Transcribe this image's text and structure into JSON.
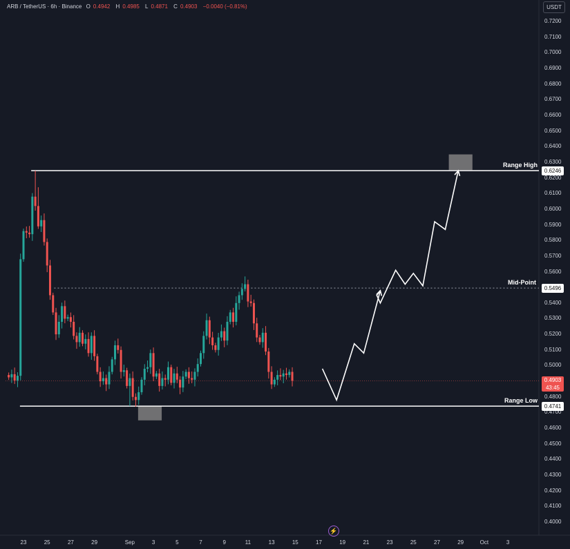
{
  "header": {
    "symbol": "ARB / TetherUS · 6h · Binance",
    "open_label": "O",
    "open": "0.4942",
    "high_label": "H",
    "high": "0.4985",
    "low_label": "L",
    "low": "0.4871",
    "close_label": "C",
    "close": "0.4903",
    "change": "−0.0040 (−0.81%)"
  },
  "currency": "USDT",
  "colors": {
    "background": "#161a25",
    "up": "#26a69a",
    "down": "#ef5350",
    "level_line": "#ffffff",
    "arrow": "#ffffff",
    "box": "#808080"
  },
  "last_price": {
    "value": "0.4903",
    "countdown": "43:45"
  },
  "levels": [
    {
      "name": "Range High",
      "value": "0.6246",
      "price": 0.6246,
      "style": "solid"
    },
    {
      "name": "Mid-Point",
      "value": "0.5496",
      "price": 0.5496,
      "style": "dotted"
    },
    {
      "name": "Range Low",
      "value": "0.4741",
      "price": 0.4741,
      "style": "solid"
    }
  ],
  "chart_data": {
    "type": "candlestick",
    "title": "",
    "xlabel": "",
    "ylabel": "",
    "ylim": [
      0.39,
      0.73
    ],
    "y_ticks": [
      "0.7200",
      "0.7100",
      "0.7000",
      "0.6900",
      "0.6800",
      "0.6700",
      "0.6600",
      "0.6500",
      "0.6400",
      "0.6300",
      "0.6200",
      "0.6100",
      "0.6000",
      "0.5900",
      "0.5800",
      "0.5700",
      "0.5600",
      "0.5500",
      "0.5400",
      "0.5300",
      "0.5200",
      "0.5100",
      "0.5000",
      "0.4800",
      "0.4700",
      "0.4600",
      "0.4500",
      "0.4400",
      "0.4300",
      "0.4200",
      "0.4100",
      "0.4000"
    ],
    "x_ticks": [
      {
        "label": "23",
        "day": 23
      },
      {
        "label": "25",
        "day": 25
      },
      {
        "label": "27",
        "day": 27
      },
      {
        "label": "29",
        "day": 29
      },
      {
        "label": "Sep",
        "day": 32
      },
      {
        "label": "3",
        "day": 34
      },
      {
        "label": "5",
        "day": 36
      },
      {
        "label": "7",
        "day": 38
      },
      {
        "label": "9",
        "day": 40
      },
      {
        "label": "11",
        "day": 42
      },
      {
        "label": "13",
        "day": 44
      },
      {
        "label": "15",
        "day": 46
      },
      {
        "label": "17",
        "day": 48
      },
      {
        "label": "19",
        "day": 50
      },
      {
        "label": "21",
        "day": 52
      },
      {
        "label": "23",
        "day": 54
      },
      {
        "label": "25",
        "day": 56
      },
      {
        "label": "27",
        "day": 58
      },
      {
        "label": "29",
        "day": 60
      },
      {
        "label": "Oct",
        "day": 62
      },
      {
        "label": "3",
        "day": 64
      }
    ],
    "candles_per_day": 4,
    "start_day": 21.75,
    "closes": [
      0.4925,
      0.4945,
      0.4905,
      0.4935,
      0.568,
      0.586,
      0.585,
      0.584,
      0.608,
      0.602,
      0.589,
      0.593,
      0.579,
      0.564,
      0.545,
      0.534,
      0.52,
      0.528,
      0.538,
      0.53,
      0.531,
      0.528,
      0.519,
      0.515,
      0.521,
      0.514,
      0.517,
      0.508,
      0.519,
      0.506,
      0.496,
      0.49,
      0.492,
      0.488,
      0.496,
      0.504,
      0.513,
      0.51,
      0.496,
      0.497,
      0.487,
      0.492,
      0.48,
      0.478,
      0.483,
      0.491,
      0.498,
      0.499,
      0.508,
      0.493,
      0.495,
      0.487,
      0.492,
      0.491,
      0.499,
      0.489,
      0.495,
      0.491,
      0.486,
      0.493,
      0.496,
      0.492,
      0.491,
      0.496,
      0.501,
      0.508,
      0.519,
      0.529,
      0.518,
      0.513,
      0.51,
      0.518,
      0.522,
      0.516,
      0.528,
      0.534,
      0.528,
      0.54,
      0.545,
      0.549,
      0.552,
      0.541,
      0.54,
      0.527,
      0.518,
      0.515,
      0.521,
      0.509,
      0.496,
      0.488,
      0.491,
      0.494,
      0.493,
      0.495,
      0.494,
      0.496,
      0.4903
    ],
    "open_first": 0.494,
    "highs_extra": 0.004,
    "lows_extra": 0.004,
    "spikes": [
      {
        "i": 9,
        "high": 0.6246
      },
      {
        "i": 10,
        "high": 0.614
      },
      {
        "i": 41,
        "low": 0.4741
      },
      {
        "i": 80,
        "high": 0.557
      }
    ],
    "projection": {
      "type": "line",
      "points": [
        {
          "day": 48.3,
          "price": 0.498
        },
        {
          "day": 49.5,
          "price": 0.478
        },
        {
          "day": 51.0,
          "price": 0.514
        },
        {
          "day": 51.8,
          "price": 0.508
        },
        {
          "day": 53.2,
          "price": 0.548
        },
        {
          "day": 52.9,
          "price": 0.545
        },
        {
          "day": 53.2,
          "price": 0.54
        },
        {
          "day": 54.5,
          "price": 0.561
        },
        {
          "day": 55.3,
          "price": 0.552
        },
        {
          "day": 56.0,
          "price": 0.559
        },
        {
          "day": 56.8,
          "price": 0.551
        },
        {
          "day": 57.8,
          "price": 0.592
        },
        {
          "day": 58.7,
          "price": 0.587
        },
        {
          "day": 59.8,
          "price": 0.6246
        }
      ]
    },
    "target_boxes": [
      {
        "day_from": 59.0,
        "day_to": 61.0,
        "price_from": 0.625,
        "price_to": 0.635
      },
      {
        "day_from": 32.7,
        "day_to": 34.7,
        "price_from": 0.465,
        "price_to": 0.4741
      }
    ]
  }
}
